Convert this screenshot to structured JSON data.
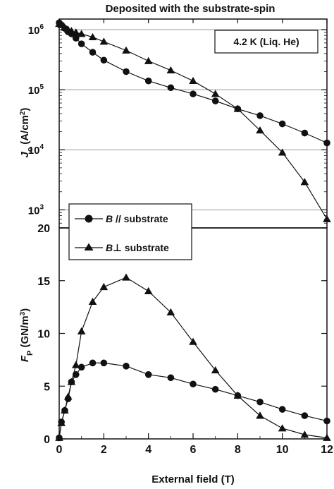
{
  "chart_data": [
    {
      "type": "line",
      "title": "Deposited with the substrate-spin",
      "annotation": "4.2 K (Liq. He)",
      "ylabel": "J_c (A/cm^2)",
      "ylabel_parts": {
        "main": "J",
        "sub": "c",
        "unit_open": " (A/cm",
        "unit_sup": "2",
        "unit_close": ")"
      },
      "yscale": "log",
      "ylim": [
        500,
        1500000
      ],
      "xlim": [
        0,
        12
      ],
      "yticks": [
        {
          "value": 1000,
          "base": "10",
          "exp": "3"
        },
        {
          "value": 10000,
          "base": "10",
          "exp": "4"
        },
        {
          "value": 100000,
          "base": "10",
          "exp": "5"
        },
        {
          "value": 1000000,
          "base": "10",
          "exp": "6"
        }
      ],
      "grid": true,
      "series": [
        {
          "name": "B // substrate",
          "name_italic": "B",
          "name_rest": " // substrate",
          "marker": "circle",
          "x": [
            0,
            0.1,
            0.25,
            0.4,
            0.55,
            0.75,
            1,
            1.5,
            2,
            3,
            4,
            5,
            6,
            7,
            8,
            9,
            10,
            11,
            12
          ],
          "y": [
            1300000,
            1200000,
            1050000,
            920000,
            850000,
            720000,
            580000,
            420000,
            310000,
            200000,
            140000,
            108000,
            85000,
            65000,
            48000,
            37000,
            27000,
            19000,
            13000
          ]
        },
        {
          "name": "B ⊥ substrate",
          "name_italic": "B",
          "name_rest": "⊥ substrate",
          "marker": "triangle",
          "x": [
            0,
            0.1,
            0.25,
            0.4,
            0.55,
            0.75,
            1,
            1.5,
            2,
            3,
            4,
            5,
            6,
            7,
            8,
            9,
            10,
            11,
            12
          ],
          "y": [
            1250000,
            1200000,
            1080000,
            1000000,
            950000,
            900000,
            850000,
            750000,
            630000,
            450000,
            300000,
            210000,
            140000,
            85000,
            48000,
            21000,
            9000,
            2900,
            700
          ]
        }
      ]
    },
    {
      "type": "line",
      "ylabel": "F_P (GN/m^3)",
      "ylabel_parts": {
        "main": "F",
        "sub": "P",
        "unit_open": " (GN/m",
        "unit_sup": "3",
        "unit_close": ")"
      },
      "xlabel": "External field (T)",
      "xlim": [
        0,
        12
      ],
      "ylim": [
        0,
        20
      ],
      "xticks": [
        0,
        2,
        4,
        6,
        8,
        10,
        12
      ],
      "yticks": [
        0,
        5,
        10,
        15,
        20
      ],
      "grid": false,
      "series": [
        {
          "name": "B // substrate",
          "marker": "circle",
          "x": [
            0,
            0.1,
            0.25,
            0.4,
            0.55,
            0.75,
            1,
            1.5,
            2,
            3,
            4,
            5,
            6,
            7,
            8,
            9,
            10,
            11,
            12
          ],
          "y": [
            0.1,
            1.6,
            2.7,
            3.8,
            5.4,
            6.1,
            6.8,
            7.2,
            7.2,
            6.9,
            6.1,
            5.8,
            5.2,
            4.7,
            4.1,
            3.5,
            2.8,
            2.2,
            1.7
          ]
        },
        {
          "name": "B ⊥ substrate",
          "marker": "triangle",
          "x": [
            0,
            0.1,
            0.25,
            0.4,
            0.55,
            0.75,
            1,
            1.5,
            2,
            3,
            4,
            5,
            6,
            7,
            8,
            9,
            10,
            11,
            12
          ],
          "y": [
            0.1,
            1.5,
            2.7,
            4.0,
            5.4,
            7.0,
            10.2,
            13.0,
            14.4,
            15.3,
            14.0,
            12.0,
            9.2,
            6.5,
            4.1,
            2.2,
            1.0,
            0.4,
            0.1
          ]
        }
      ]
    }
  ]
}
